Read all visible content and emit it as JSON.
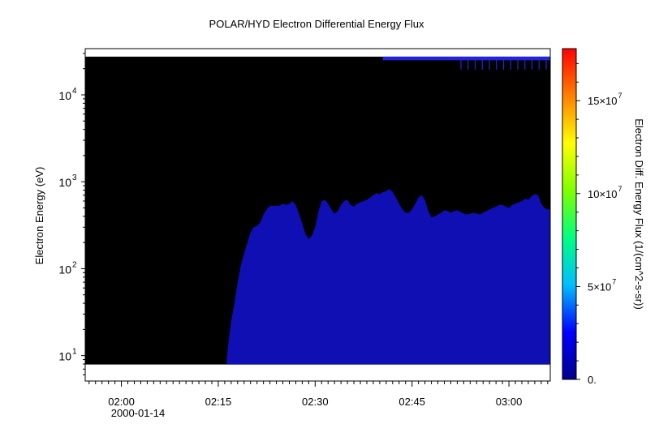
{
  "chart_data": {
    "type": "heatmap",
    "title": "POLAR/HYD  Electron Differential Energy Flux",
    "ylabel": "Electron Energy (eV)",
    "colorbar_label": "Electron Diff. Energy Flux (1/(cm^2-s-sr))",
    "x_ticks": [
      {
        "label": "02:00",
        "minutes": 0
      },
      {
        "label": "02:15",
        "minutes": 15
      },
      {
        "label": "02:30",
        "minutes": 30
      },
      {
        "label": "02:45",
        "minutes": 45
      },
      {
        "label": "03:00",
        "minutes": 60
      }
    ],
    "x_date_label": "2000-01-14",
    "xlim_minutes": [
      -5.6,
      66.4
    ],
    "y_ticks": [
      {
        "base": "10",
        "exp": "1",
        "value": 10
      },
      {
        "base": "10",
        "exp": "2",
        "value": 100
      },
      {
        "base": "10",
        "exp": "3",
        "value": 1000
      },
      {
        "base": "10",
        "exp": "4",
        "value": 10000
      }
    ],
    "y_scale": "log",
    "ylim": [
      5.1,
      34000
    ],
    "data_energy_range": [
      7.9,
      27500
    ],
    "no_data_color": "#000000",
    "flux_color": "#0f0fb4",
    "upper_band": {
      "start_minutes": 40.5,
      "energy_low": 25000,
      "color": "#2424e0"
    },
    "colorbar": {
      "range": [
        0,
        178000000
      ],
      "ticks": [
        {
          "label": "0.",
          "value": 0,
          "exp": ""
        },
        {
          "label": "5×10",
          "value": 50000000,
          "exp": "7"
        },
        {
          "label": "10×10",
          "value": 100000000,
          "exp": "7"
        },
        {
          "label": "15×10",
          "value": 150000000,
          "exp": "7"
        }
      ],
      "colors": [
        "#00008b",
        "#0000ff",
        "#00bfff",
        "#00ff80",
        "#7fff00",
        "#ffff00",
        "#ff8000",
        "#ff0000"
      ]
    },
    "flux_upper_envelope": [
      [
        16.3,
        9
      ],
      [
        16.6,
        15
      ],
      [
        17.0,
        25
      ],
      [
        17.5,
        40
      ],
      [
        18.0,
        70
      ],
      [
        18.5,
        110
      ],
      [
        19.0,
        150
      ],
      [
        19.5,
        200
      ],
      [
        20.0,
        260
      ],
      [
        20.5,
        300
      ],
      [
        21.0,
        310
      ],
      [
        21.5,
        340
      ],
      [
        22.0,
        420
      ],
      [
        22.5,
        480
      ],
      [
        23.0,
        530
      ],
      [
        24.5,
        530
      ],
      [
        25.0,
        560
      ],
      [
        25.5,
        540
      ],
      [
        26.0,
        560
      ],
      [
        26.5,
        600
      ],
      [
        27.0,
        540
      ],
      [
        27.5,
        430
      ],
      [
        28.0,
        330
      ],
      [
        28.5,
        250
      ],
      [
        29.0,
        220
      ],
      [
        29.5,
        240
      ],
      [
        30.0,
        300
      ],
      [
        30.5,
        450
      ],
      [
        31.0,
        600
      ],
      [
        31.5,
        620
      ],
      [
        32.0,
        560
      ],
      [
        32.5,
        480
      ],
      [
        33.0,
        430
      ],
      [
        33.5,
        460
      ],
      [
        34.0,
        540
      ],
      [
        34.5,
        600
      ],
      [
        35.0,
        620
      ],
      [
        35.5,
        540
      ],
      [
        36.0,
        520
      ],
      [
        36.5,
        560
      ],
      [
        37.0,
        580
      ],
      [
        37.5,
        600
      ],
      [
        38.0,
        620
      ],
      [
        38.5,
        660
      ],
      [
        39.0,
        700
      ],
      [
        39.5,
        740
      ],
      [
        40.0,
        720
      ],
      [
        40.5,
        760
      ],
      [
        41.0,
        780
      ],
      [
        41.5,
        830
      ],
      [
        42.0,
        760
      ],
      [
        42.5,
        660
      ],
      [
        43.0,
        560
      ],
      [
        43.5,
        480
      ],
      [
        44.0,
        440
      ],
      [
        44.5,
        440
      ],
      [
        45.0,
        480
      ],
      [
        45.5,
        560
      ],
      [
        46.0,
        660
      ],
      [
        46.5,
        700
      ],
      [
        47.0,
        620
      ],
      [
        47.5,
        460
      ],
      [
        48.0,
        390
      ],
      [
        48.5,
        400
      ],
      [
        49.0,
        420
      ],
      [
        49.5,
        440
      ],
      [
        50.0,
        470
      ],
      [
        50.5,
        460
      ],
      [
        51.0,
        440
      ],
      [
        51.5,
        460
      ],
      [
        52.0,
        470
      ],
      [
        52.5,
        450
      ],
      [
        53.0,
        430
      ],
      [
        53.5,
        420
      ],
      [
        54.0,
        430
      ],
      [
        54.5,
        440
      ],
      [
        55.0,
        430
      ],
      [
        55.5,
        420
      ],
      [
        56.0,
        440
      ],
      [
        56.5,
        460
      ],
      [
        57.0,
        480
      ],
      [
        57.5,
        500
      ],
      [
        58.0,
        520
      ],
      [
        58.5,
        540
      ],
      [
        59.0,
        540
      ],
      [
        59.5,
        520
      ],
      [
        60.0,
        500
      ],
      [
        60.5,
        540
      ],
      [
        61.0,
        560
      ],
      [
        61.5,
        580
      ],
      [
        62.0,
        600
      ],
      [
        62.5,
        640
      ],
      [
        63.0,
        620
      ],
      [
        63.5,
        680
      ],
      [
        64.0,
        720
      ],
      [
        64.5,
        700
      ],
      [
        65.0,
        560
      ],
      [
        65.5,
        500
      ],
      [
        66.0,
        480
      ]
    ]
  }
}
